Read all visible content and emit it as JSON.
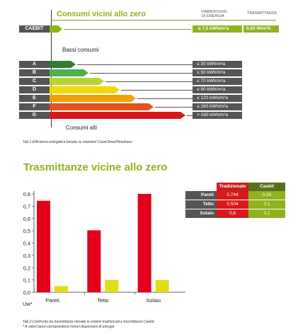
{
  "energy": {
    "title": "Consumi vicini allo zero",
    "col1_header": "FABBISOGNO\nDI ENERGIA",
    "col2_header": "TRASMITTANZA",
    "caebit": {
      "label": "CAEBIT",
      "energy": "≤ 7,5 kWh/m²a",
      "trans": "0,05 W/m²K",
      "color": "#8fb31d"
    },
    "bassi": "Bassi consumi",
    "alti": "Consumi alti",
    "classes": [
      {
        "letter": "A",
        "range": "≤ 30 kWh/m²a",
        "color": "#2e7d32"
      },
      {
        "letter": "B",
        "range": "≤ 50 kWh/m²a",
        "color": "#4caf50"
      },
      {
        "letter": "C",
        "range": "≤ 70 kWh/m²a",
        "color": "#b8d432"
      },
      {
        "letter": "D",
        "range": "≤ 90 kWh/m²a",
        "color": "#f4d800"
      },
      {
        "letter": "E",
        "range": "≤ 120 kWh/m²a",
        "color": "#f4a000"
      },
      {
        "letter": "F",
        "range": "≤ 160 kWh/m²a",
        "color": "#e8501a"
      },
      {
        "letter": "G",
        "range": "> 160 kWh/m²a",
        "color": "#d7191c"
      }
    ],
    "caption": "Tab.1-Efficienza energetica basata su standard CasaClima/Klimahaus"
  },
  "chart_data": {
    "type": "bar",
    "title": "Trasmittanze vicine allo zero",
    "categories": [
      "Pareti",
      "Tetto",
      "Solaio"
    ],
    "series": [
      {
        "name": "Tradizionale",
        "values": [
          0.744,
          0.504,
          0.8
        ],
        "color": "#e3001b"
      },
      {
        "name": "Caebit",
        "values": [
          0.05,
          0.1,
          0.1
        ],
        "color": "#e0dc1a"
      }
    ],
    "ylim": [
      0,
      0.8
    ],
    "yticks": [
      "0,0",
      "0,1",
      "0,2",
      "0,3",
      "0,4",
      "0,5",
      "0,6",
      "0,7",
      "0,8"
    ],
    "xlabel": "Uw*",
    "grid": false
  },
  "table": {
    "headers": [
      "Tradizionale",
      "Caebit"
    ],
    "rows": [
      {
        "label": "Pareti",
        "trad": "0,744",
        "caebit": "0,05"
      },
      {
        "label": "Tetto",
        "trad": "0,504",
        "caebit": "0,1"
      },
      {
        "label": "Solaio",
        "trad": "0,8",
        "caebit": "0,1"
      }
    ]
  },
  "caption2": "Tab.2-Confronto tra trasmittanze rilevate in sistemi tradizionali e trasmittanze Caebit.",
  "footnote": "* A valori bassi corrispondono minori dispersioni di energia"
}
